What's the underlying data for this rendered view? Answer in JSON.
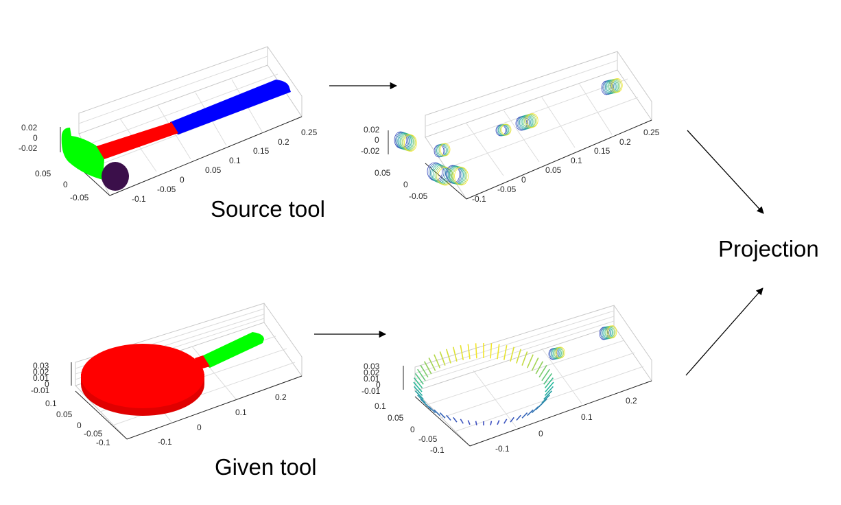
{
  "labels": {
    "source_tool": "Source tool",
    "given_tool": "Given tool",
    "projection": "Projection"
  },
  "colors": {
    "head": "#00ff00",
    "neck": "#ff0000",
    "handle": "#0000ff",
    "face": "#3b0f4a",
    "pan": "#ff0000",
    "pan_handle": "#00ff00",
    "contour_low": "#3b4cc0",
    "contour_mid": "#21b89a",
    "contour_high": "#f2e528"
  },
  "plots": {
    "hammer": {
      "z_ticks": [
        "0.02",
        "0",
        "-0.02"
      ],
      "y_ticks": [
        "0.05",
        "0",
        "-0.05"
      ],
      "x_ticks": [
        "-0.1",
        "-0.05",
        "0",
        "0.05",
        "0.1",
        "0.15",
        "0.2",
        "0.25"
      ]
    },
    "hammer_proj": {
      "z_ticks": [
        "0.02",
        "0",
        "-0.02"
      ],
      "y_ticks": [
        "0.05",
        "0",
        "-0.05"
      ],
      "x_ticks": [
        "-0.1",
        "-0.05",
        "0",
        "0.05",
        "0.1",
        "0.15",
        "0.2",
        "0.25"
      ]
    },
    "pan": {
      "z_ticks": [
        "0.03",
        "0.02",
        "0.01",
        "0",
        "-0.01"
      ],
      "y_ticks": [
        "0.1",
        "0.05",
        "0",
        "-0.05",
        "-0.1"
      ],
      "x_ticks": [
        "-0.1",
        "0",
        "0.1",
        "0.2"
      ]
    },
    "pan_proj": {
      "z_ticks": [
        "0.03",
        "0.02",
        "0.01",
        "0",
        "-0.01"
      ],
      "y_ticks": [
        "0.1",
        "0.05",
        "0",
        "-0.05",
        "-0.1"
      ],
      "x_ticks": [
        "-0.1",
        "0",
        "0.1",
        "0.2"
      ]
    }
  }
}
